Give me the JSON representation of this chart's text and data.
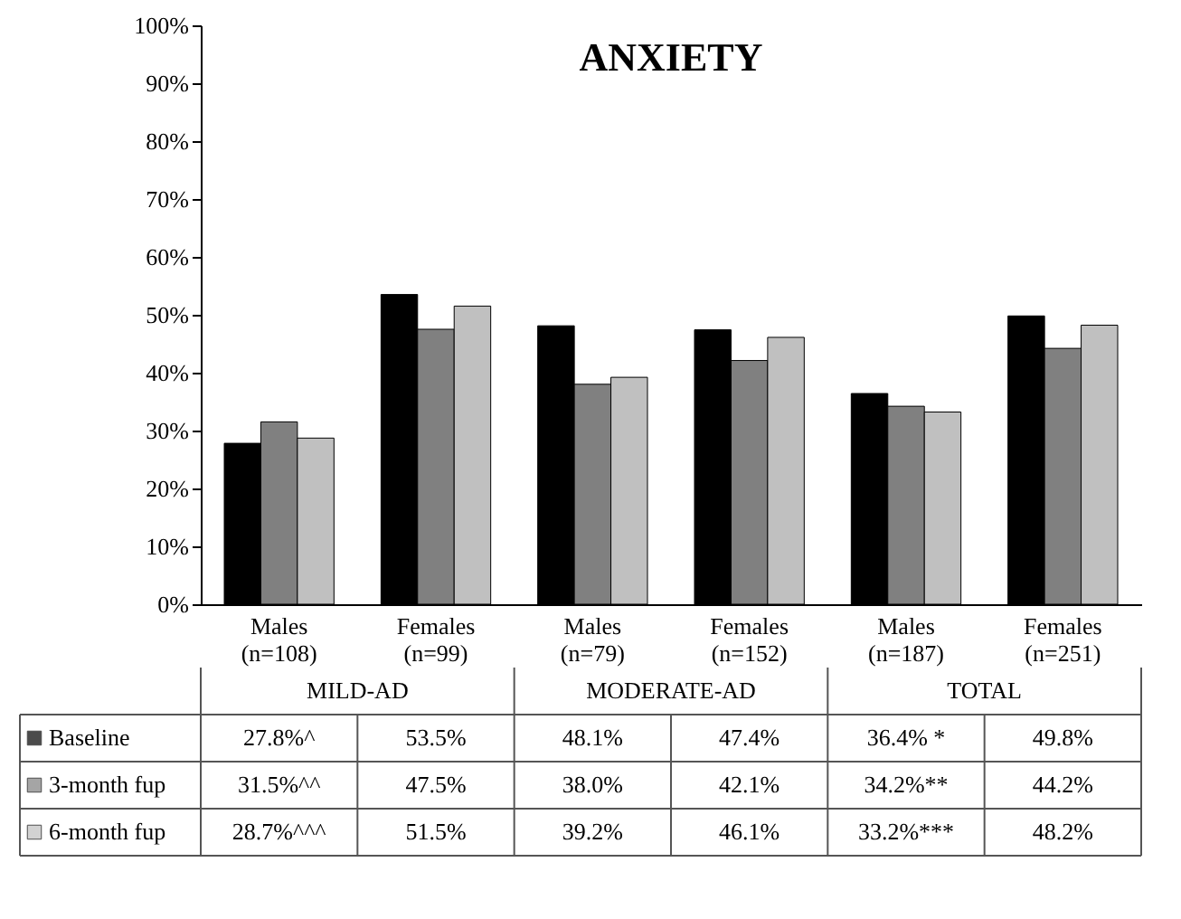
{
  "chart_data": {
    "type": "bar",
    "title": "ANXIETY",
    "categories": [
      "Males (n=108)",
      "Females (n=99)",
      "Males (n=79)",
      "Females (n=152)",
      "Males (n=187)",
      "Females (n=251)"
    ],
    "annotations": [
      "MILD-AD",
      "MODERATE-AD",
      "TOTAL"
    ],
    "series": [
      {
        "name": "Baseline",
        "color": "#000000",
        "values": [
          27.8,
          53.5,
          48.1,
          47.4,
          36.4,
          49.8
        ],
        "value_labels": [
          "27.8%^",
          "53.5%",
          "48.1%",
          "47.4%",
          "36.4% *",
          "49.8%"
        ]
      },
      {
        "name": "3-month fup",
        "color": "#808080",
        "values": [
          31.5,
          47.5,
          38.0,
          42.1,
          34.2,
          44.2
        ],
        "value_labels": [
          "31.5%^^",
          "47.5%",
          "38.0%",
          "42.1%",
          "34.2%**",
          "44.2%"
        ]
      },
      {
        "name": "6-month fup",
        "color": "#c0c0c0",
        "values": [
          28.7,
          51.5,
          39.2,
          46.1,
          33.2,
          48.2
        ],
        "value_labels": [
          "28.7%^^^",
          "51.5%",
          "39.2%",
          "46.1%",
          "33.2%***",
          "48.2%"
        ]
      }
    ],
    "ylim": [
      0,
      100
    ],
    "yticks": [
      {
        "value": 0,
        "label": "0%"
      },
      {
        "value": 10,
        "label": "10%"
      },
      {
        "value": 20,
        "label": "20%"
      },
      {
        "value": 30,
        "label": "30%"
      },
      {
        "value": 40,
        "label": "40%"
      },
      {
        "value": 50,
        "label": "50%"
      },
      {
        "value": 60,
        "label": "60%"
      },
      {
        "value": 70,
        "label": "70%"
      },
      {
        "value": 80,
        "label": "80%"
      },
      {
        "value": 90,
        "label": "90%"
      },
      {
        "value": 100,
        "label": "100%"
      }
    ],
    "legend": "bottom",
    "grid": false
  }
}
